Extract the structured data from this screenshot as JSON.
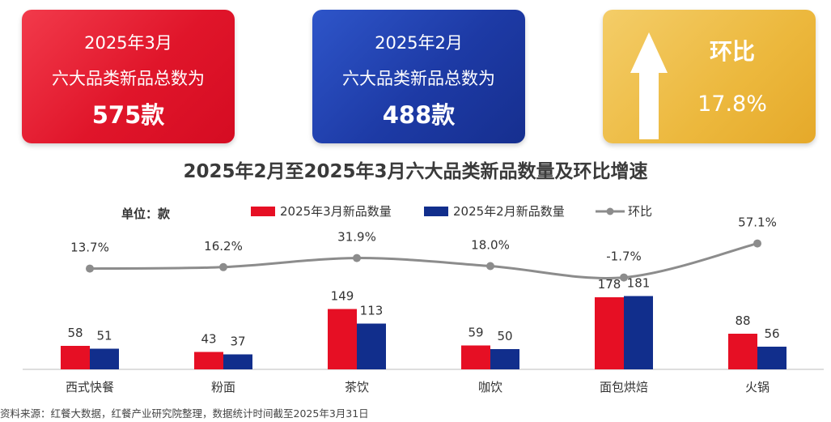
{
  "cards": {
    "march": {
      "line1": "2025年3月",
      "line2": "六大品类新品总数为",
      "value": "575款"
    },
    "feb": {
      "line1": "2025年2月",
      "line2": "六大品类新品总数为",
      "value": "488款"
    },
    "mom": {
      "label": "环比",
      "value": "17.8%",
      "icon": "up-arrow-icon"
    }
  },
  "colors": {
    "march": "#e60f24",
    "feb": "#112e8c",
    "line": "#8c8c8c",
    "gold": "#ecb83d"
  },
  "unit_label": "单位：款",
  "source": "资料来源：红餐大数据，红餐产业研究院整理，数据统计时间截至2025年3月31日",
  "chart_data": {
    "type": "bar",
    "title": "2025年2月至2025年3月六大品类新品数量及环比增速",
    "categories": [
      "西式快餐",
      "粉面",
      "茶饮",
      "咖饮",
      "面包烘焙",
      "火锅"
    ],
    "series": [
      {
        "name": "2025年3月新品数量",
        "type": "bar",
        "values": [
          58,
          43,
          149,
          59,
          178,
          88
        ]
      },
      {
        "name": "2025年2月新品数量",
        "type": "bar",
        "values": [
          51,
          37,
          113,
          50,
          181,
          56
        ]
      },
      {
        "name": "环比",
        "type": "line",
        "values": [
          13.7,
          16.2,
          31.9,
          18.0,
          -1.7,
          57.1
        ],
        "labels": [
          "13.7%",
          "16.2%",
          "31.9%",
          "18.0%",
          "-1.7%",
          "57.1%"
        ]
      }
    ],
    "legend_position": "top",
    "grid": false
  }
}
